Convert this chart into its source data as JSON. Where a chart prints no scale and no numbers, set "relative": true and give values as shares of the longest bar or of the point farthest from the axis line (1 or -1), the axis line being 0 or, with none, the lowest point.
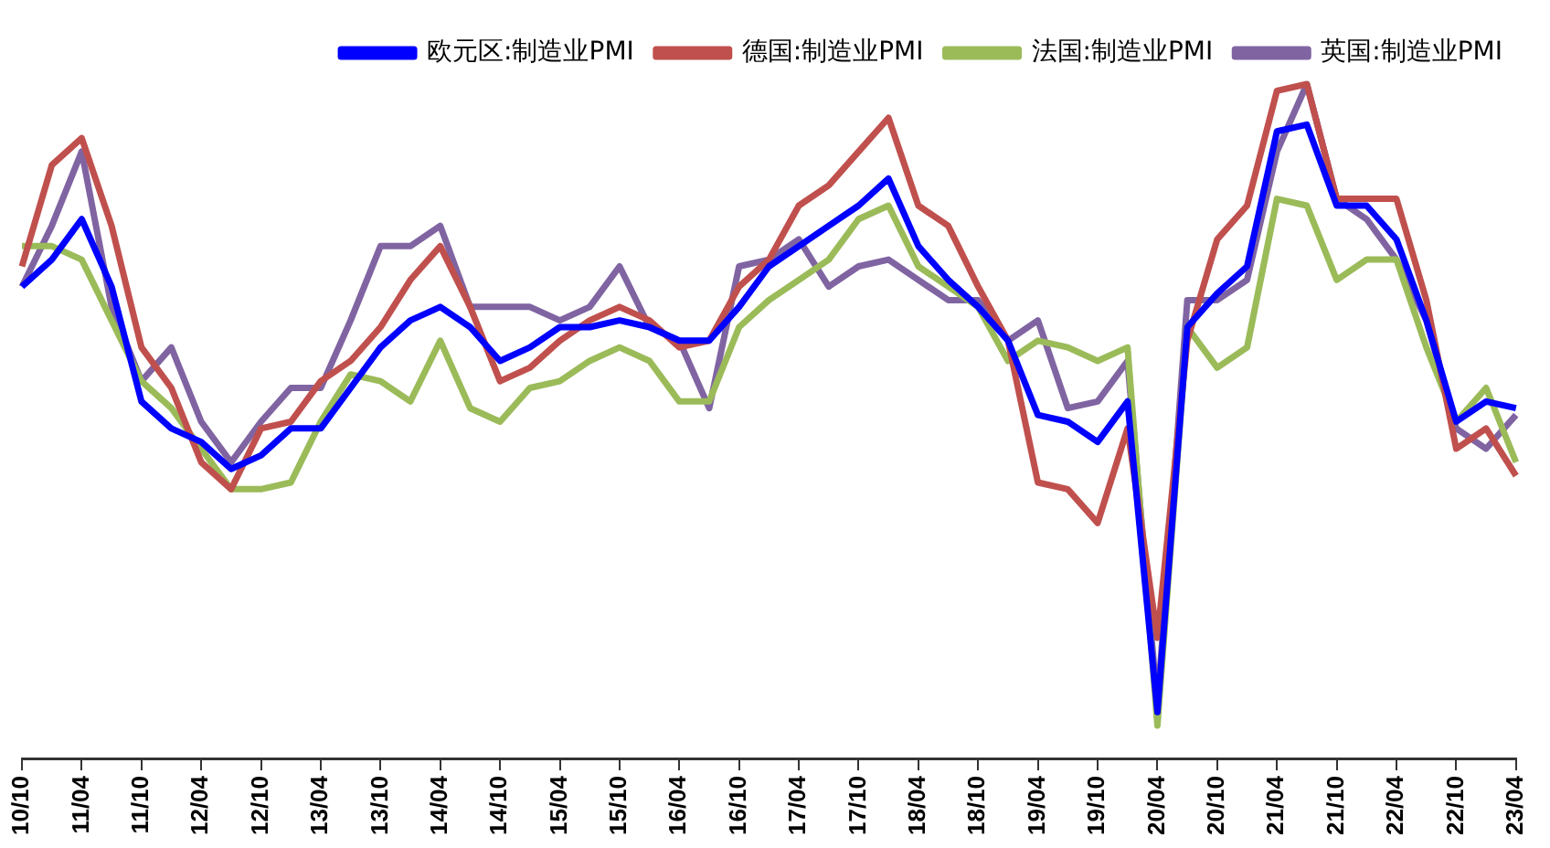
{
  "chart_data": {
    "type": "line",
    "relative": true,
    "legend": "top",
    "categories": [
      "10/10",
      null,
      "11/04",
      null,
      "11/10",
      null,
      "12/04",
      null,
      "12/10",
      null,
      "13/04",
      null,
      "13/10",
      null,
      "14/04",
      null,
      "14/10",
      null,
      "15/04",
      null,
      "15/10",
      null,
      "16/04",
      null,
      "16/10",
      null,
      "17/04",
      null,
      "17/10",
      null,
      "18/04",
      null,
      "18/10",
      null,
      "19/04",
      null,
      "19/10",
      null,
      "20/04",
      null,
      "20/10",
      null,
      "21/04",
      null,
      "21/10",
      null,
      "22/04",
      null,
      "22/10",
      null,
      "23/04"
    ],
    "series": [
      {
        "name": "欧元区:制造业PMI",
        "color": "#0000ff",
        "values": [
          0.7,
          0.74,
          0.8,
          0.7,
          0.53,
          0.49,
          0.47,
          0.43,
          0.45,
          0.49,
          0.49,
          0.55,
          0.61,
          0.65,
          0.67,
          0.64,
          0.59,
          0.61,
          0.64,
          0.64,
          0.65,
          0.64,
          0.62,
          0.62,
          0.67,
          0.73,
          0.76,
          0.79,
          0.82,
          0.86,
          0.76,
          0.71,
          0.67,
          0.62,
          0.51,
          0.5,
          0.47,
          0.53,
          0.07,
          0.64,
          0.69,
          0.73,
          0.93,
          0.94,
          0.82,
          0.82,
          0.77,
          0.65,
          0.5,
          0.53,
          0.52
        ]
      },
      {
        "name": "德国:制造业PMI",
        "color": "#c0504d",
        "values": [
          0.73,
          0.88,
          0.92,
          0.79,
          0.61,
          0.55,
          0.44,
          0.4,
          0.49,
          0.5,
          0.56,
          0.59,
          0.64,
          0.71,
          0.76,
          0.67,
          0.56,
          0.58,
          0.62,
          0.65,
          0.67,
          0.65,
          0.61,
          0.62,
          0.7,
          0.74,
          0.82,
          0.85,
          0.9,
          0.95,
          0.82,
          0.79,
          0.7,
          0.62,
          0.41,
          0.4,
          0.35,
          0.49,
          0.18,
          0.62,
          0.77,
          0.82,
          0.99,
          1.0,
          0.83,
          0.83,
          0.83,
          0.68,
          0.46,
          0.49,
          0.42
        ]
      },
      {
        "name": "法国:制造业PMI",
        "color": "#9bbb59",
        "values": [
          0.76,
          0.76,
          0.74,
          0.65,
          0.56,
          0.52,
          0.46,
          0.4,
          0.4,
          0.41,
          0.5,
          0.57,
          0.56,
          0.53,
          0.62,
          0.52,
          0.5,
          0.55,
          0.56,
          0.59,
          0.61,
          0.59,
          0.53,
          0.53,
          0.64,
          0.68,
          0.71,
          0.74,
          0.8,
          0.82,
          0.73,
          0.7,
          0.67,
          0.59,
          0.62,
          0.61,
          0.59,
          0.61,
          0.05,
          0.64,
          0.58,
          0.61,
          0.83,
          0.82,
          0.71,
          0.74,
          0.74,
          0.61,
          0.5,
          0.55,
          0.44
        ]
      },
      {
        "name": "英国:制造业PMI",
        "color": "#8064a2",
        "values": [
          0.7,
          0.79,
          0.9,
          0.67,
          0.56,
          0.61,
          0.5,
          0.44,
          0.5,
          0.55,
          0.55,
          0.65,
          0.76,
          0.76,
          0.79,
          0.67,
          0.67,
          0.67,
          0.65,
          0.67,
          0.73,
          0.64,
          0.62,
          0.52,
          0.73,
          0.74,
          0.77,
          0.7,
          0.73,
          0.74,
          0.71,
          0.68,
          0.68,
          0.62,
          0.65,
          0.52,
          0.53,
          0.59,
          0.08,
          0.68,
          0.68,
          0.71,
          0.9,
          1.0,
          0.83,
          0.8,
          0.74,
          0.65,
          0.49,
          0.46,
          0.51
        ]
      }
    ]
  }
}
